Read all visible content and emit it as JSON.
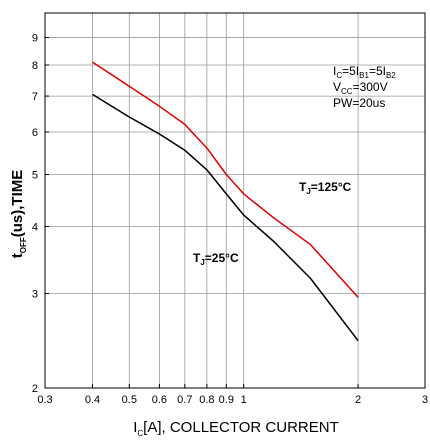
{
  "chart_data": {
    "type": "line",
    "x_scale": "log",
    "y_scale": "log",
    "xlim": [
      0.3,
      3
    ],
    "ylim": [
      2,
      10
    ],
    "grid": true,
    "x_ticks": [
      0.3,
      0.4,
      0.5,
      0.6,
      0.7,
      0.8,
      0.9,
      1,
      2,
      3
    ],
    "x_tick_labels": [
      "0.3",
      "0.4",
      "0.5",
      "0.6",
      "0.7",
      "0.8",
      "0.9",
      "1",
      "2",
      "3"
    ],
    "y_ticks": [
      2,
      3,
      4,
      5,
      6,
      7,
      8,
      9
    ],
    "y_tick_labels": [
      "2",
      "3",
      "4",
      "5",
      "6",
      "7",
      "8",
      "9"
    ],
    "xlabel": {
      "main": "I",
      "sub": "C",
      "rest": "[A], COLLECTOR CURRENT"
    },
    "ylabel": {
      "main": "t",
      "sub": "OFF",
      "rest": "(us),TIME"
    },
    "conditions": {
      "line1": {
        "a": "I",
        "a_sub": "C",
        "b": "=5I",
        "b_sub": "B1",
        "c": "=5I",
        "c_sub": "B2"
      },
      "line2": {
        "a": "V",
        "a_sub": "CC",
        "b": "=300V"
      },
      "line3": "PW=20us"
    },
    "series": [
      {
        "label_main": "T",
        "label_sub": "J",
        "label_rest": "=125°C",
        "color": "#e00000",
        "x": [
          0.4,
          0.5,
          0.6,
          0.7,
          0.8,
          0.9,
          1.0,
          1.2,
          1.5,
          2.0
        ],
        "y": [
          8.1,
          7.3,
          6.7,
          6.2,
          5.6,
          5.0,
          4.6,
          4.15,
          3.7,
          2.95
        ]
      },
      {
        "label_main": "T",
        "label_sub": "J",
        "label_rest": "=25°C",
        "color": "#000000",
        "x": [
          0.4,
          0.5,
          0.6,
          0.7,
          0.8,
          0.9,
          1.0,
          1.2,
          1.5,
          2.0
        ],
        "y": [
          7.05,
          6.4,
          5.95,
          5.55,
          5.1,
          4.6,
          4.2,
          3.75,
          3.2,
          2.45
        ]
      }
    ]
  }
}
